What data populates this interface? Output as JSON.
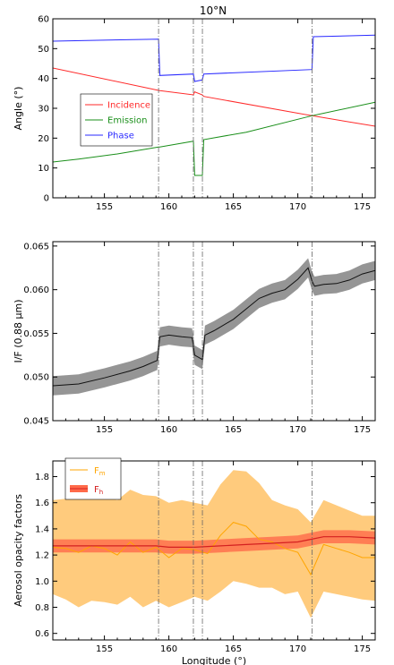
{
  "title": "10°N",
  "colors": {
    "incidence": "#ff2a2a",
    "emission": "#1a8f1a",
    "phase": "#2a2aff",
    "if_band": "#8a8a8a",
    "if_line": "#111111",
    "fm_band": "#ffc266",
    "fm_line": "#ffa500",
    "fh_band": "#ff6a4a",
    "fh_line": "#d42020"
  },
  "chart_data": [
    {
      "type": "line",
      "xlabel": "",
      "ylabel": "Angle (°)",
      "xlim": [
        151,
        176
      ],
      "ylim": [
        0,
        60
      ],
      "xticks": [
        155,
        160,
        165,
        170,
        175
      ],
      "yticks": [
        0,
        10,
        20,
        30,
        40,
        50,
        60
      ],
      "vlines": [
        159.2,
        161.9,
        162.6,
        171.1
      ],
      "legend_position": "center-left",
      "series": [
        {
          "name": "Incidence",
          "x": [
            151,
            159.2,
            159.3,
            161.9,
            162.0,
            162.6,
            162.7,
            171.1,
            176
          ],
          "y": [
            43.5,
            36.0,
            35.9,
            34.5,
            35.5,
            34.5,
            34.0,
            27.5,
            24.0
          ]
        },
        {
          "name": "Emission",
          "x": [
            151,
            153,
            156,
            159.2,
            159.3,
            161.9,
            162.0,
            162.6,
            162.7,
            166,
            171.1,
            176
          ],
          "y": [
            12.0,
            13.0,
            14.7,
            17.0,
            17.0,
            19.0,
            7.5,
            7.5,
            19.5,
            22.0,
            27.5,
            32.0
          ]
        },
        {
          "name": "Phase",
          "x": [
            151,
            159.2,
            159.3,
            161.9,
            162.0,
            162.6,
            162.7,
            171.1,
            171.2,
            176
          ],
          "y": [
            52.5,
            53.2,
            41.0,
            41.5,
            39.0,
            39.5,
            41.5,
            43.0,
            54.0,
            54.5
          ]
        }
      ]
    },
    {
      "type": "line",
      "xlabel": "",
      "ylabel": "I/F (0.88 μm)",
      "xlim": [
        151,
        176
      ],
      "ylim": [
        0.045,
        0.0655
      ],
      "xticks": [
        155,
        160,
        165,
        170,
        175
      ],
      "yticks": [
        0.045,
        0.05,
        0.055,
        0.06,
        0.065
      ],
      "ytick_labels": [
        "0.045",
        "0.050",
        "0.055",
        "0.060",
        "0.065"
      ],
      "vlines": [
        159.2,
        161.9,
        162.6,
        171.1
      ],
      "series": [
        {
          "name": "",
          "x": [
            151,
            153,
            155,
            157,
            158,
            159.1,
            159.3,
            160,
            161,
            161.8,
            162.0,
            162.6,
            162.8,
            163.5,
            165,
            166,
            167,
            168,
            169,
            170,
            170.8,
            171.1,
            171.3,
            172,
            173,
            174,
            175,
            176
          ],
          "y": [
            0.049,
            0.0492,
            0.0499,
            0.0507,
            0.0512,
            0.0519,
            0.0546,
            0.0548,
            0.0546,
            0.0545,
            0.0525,
            0.052,
            0.0548,
            0.0553,
            0.0566,
            0.0578,
            0.059,
            0.0596,
            0.06,
            0.0612,
            0.0625,
            0.061,
            0.0604,
            0.0606,
            0.0607,
            0.0611,
            0.0618,
            0.0622
          ],
          "band": 0.0011
        }
      ]
    },
    {
      "type": "line",
      "xlabel": "Longitude (°)",
      "ylabel": "Aerosol opacity factors",
      "xlim": [
        151,
        176
      ],
      "ylim": [
        0.55,
        1.92
      ],
      "xticks": [
        155,
        160,
        165,
        170,
        175
      ],
      "yticks": [
        0.6,
        0.8,
        1.0,
        1.2,
        1.4,
        1.6,
        1.8
      ],
      "ytick_labels": [
        "0.6",
        "0.8",
        "1.0",
        "1.2",
        "1.4",
        "1.6",
        "1.8"
      ],
      "vlines": [
        159.2,
        161.9,
        162.6,
        171.1
      ],
      "legend_position": "top-left",
      "series": [
        {
          "name": "F",
          "sub": "m",
          "x": [
            151,
            152,
            153,
            154,
            155,
            156,
            157,
            158,
            159,
            160,
            161,
            162,
            163,
            164,
            165,
            166,
            167,
            168,
            169,
            170,
            171,
            172,
            173,
            174,
            175,
            176
          ],
          "y": [
            1.26,
            1.25,
            1.22,
            1.27,
            1.25,
            1.2,
            1.3,
            1.22,
            1.26,
            1.18,
            1.25,
            1.24,
            1.21,
            1.35,
            1.45,
            1.42,
            1.32,
            1.3,
            1.25,
            1.22,
            1.05,
            1.28,
            1.25,
            1.22,
            1.18,
            1.18
          ],
          "lower": [
            0.9,
            0.86,
            0.8,
            0.85,
            0.84,
            0.82,
            0.88,
            0.8,
            0.85,
            0.8,
            0.84,
            0.88,
            0.85,
            0.92,
            1.0,
            0.98,
            0.95,
            0.95,
            0.9,
            0.92,
            0.72,
            0.92,
            0.9,
            0.88,
            0.86,
            0.85
          ],
          "upper": [
            1.62,
            1.63,
            1.65,
            1.68,
            1.66,
            1.62,
            1.7,
            1.66,
            1.65,
            1.6,
            1.62,
            1.6,
            1.58,
            1.74,
            1.85,
            1.84,
            1.75,
            1.62,
            1.58,
            1.55,
            1.45,
            1.62,
            1.58,
            1.54,
            1.5,
            1.5
          ]
        },
        {
          "name": "F",
          "sub": "h",
          "x": [
            151,
            153,
            155,
            157,
            159,
            160,
            162,
            164,
            166,
            168,
            170,
            171,
            172,
            174,
            176
          ],
          "y": [
            1.27,
            1.27,
            1.27,
            1.27,
            1.27,
            1.26,
            1.26,
            1.27,
            1.28,
            1.29,
            1.3,
            1.32,
            1.34,
            1.34,
            1.33
          ],
          "band": 0.05
        }
      ]
    }
  ]
}
